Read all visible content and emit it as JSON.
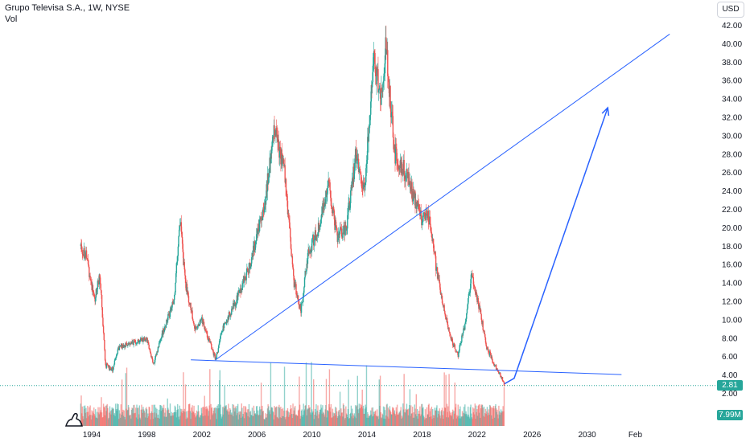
{
  "legend": {
    "title": "Grupo Televisa S.A., 1W, NYSE",
    "volume_label": "Vol"
  },
  "toolbar": {
    "currency": "USD"
  },
  "badges": {
    "last_price": "2.81",
    "volume": "7.99M"
  },
  "colors": {
    "up": "#26a69a",
    "down": "#ef5350",
    "trendline": "#2962ff",
    "axis_text": "#131722",
    "grid": "#f0f3fa"
  },
  "chart_data": {
    "type": "candlestick",
    "title": "Grupo Televisa S.A., 1W, NYSE",
    "ylim": [
      0,
      43
    ],
    "y_ticks": [
      2,
      4,
      6,
      8,
      10,
      12,
      14,
      16,
      18,
      20,
      22,
      24,
      26,
      28,
      30,
      32,
      34,
      36,
      38,
      40,
      42
    ],
    "y_tick_labels": [
      "2.00",
      "4.00",
      "6.00",
      "8.00",
      "10.00",
      "12.00",
      "14.00",
      "16.00",
      "18.00",
      "20.00",
      "22.00",
      "24.00",
      "26.00",
      "28.00",
      "30.00",
      "32.00",
      "34.00",
      "36.00",
      "38.00",
      "40.00",
      "42.00"
    ],
    "x_ticks": [
      1994,
      1998,
      2002,
      2006,
      2010,
      2014,
      2018,
      2022,
      2026,
      2030,
      2033.5
    ],
    "x_tick_labels": [
      "1994",
      "1998",
      "2002",
      "2006",
      "2010",
      "2014",
      "2018",
      "2022",
      "2026",
      "2030",
      "Feb"
    ],
    "grid": false,
    "last_price": 2.81,
    "last_volume": "7.99M",
    "price_path": [
      [
        1993.2,
        18.0
      ],
      [
        1993.6,
        17.0
      ],
      [
        1994.2,
        12.0
      ],
      [
        1994.6,
        15.0
      ],
      [
        1995.0,
        5.0
      ],
      [
        1995.5,
        4.5
      ],
      [
        1996.0,
        7.0
      ],
      [
        1997.0,
        7.5
      ],
      [
        1998.0,
        8.0
      ],
      [
        1998.5,
        5.0
      ],
      [
        1999.0,
        8.0
      ],
      [
        2000.0,
        12.0
      ],
      [
        2000.4,
        21.0
      ],
      [
        2000.8,
        14.0
      ],
      [
        2001.5,
        9.0
      ],
      [
        2002.0,
        10.0
      ],
      [
        2003.0,
        5.6
      ],
      [
        2003.5,
        9.0
      ],
      [
        2004.5,
        12.0
      ],
      [
        2005.5,
        16.0
      ],
      [
        2006.5,
        22.0
      ],
      [
        2007.3,
        31.0
      ],
      [
        2008.0,
        26.0
      ],
      [
        2008.7,
        14.0
      ],
      [
        2009.2,
        11.0
      ],
      [
        2009.7,
        17.0
      ],
      [
        2010.5,
        20.0
      ],
      [
        2011.2,
        25.0
      ],
      [
        2011.8,
        19.0
      ],
      [
        2012.5,
        20.0
      ],
      [
        2013.2,
        28.0
      ],
      [
        2013.8,
        24.0
      ],
      [
        2014.5,
        38.0
      ],
      [
        2015.0,
        34.0
      ],
      [
        2015.4,
        40.0
      ],
      [
        2016.0,
        28.0
      ],
      [
        2016.8,
        26.0
      ],
      [
        2017.5,
        23.0
      ],
      [
        2017.9,
        21.0
      ],
      [
        2018.5,
        21.0
      ],
      [
        2019.0,
        16.0
      ],
      [
        2019.6,
        11.0
      ],
      [
        2020.1,
        8.0
      ],
      [
        2020.6,
        6.0
      ],
      [
        2021.2,
        10.0
      ],
      [
        2021.6,
        15.0
      ],
      [
        2022.2,
        11.0
      ],
      [
        2022.7,
        7.0
      ],
      [
        2023.3,
        5.0
      ],
      [
        2023.7,
        4.0
      ],
      [
        2024.0,
        2.81
      ]
    ],
    "drawings": {
      "neckline": [
        [
          2001.2,
          5.6
        ],
        [
          2032.5,
          4.0
        ]
      ],
      "rising_trendline": [
        [
          2003.0,
          5.6
        ],
        [
          2036.0,
          41.0
        ]
      ],
      "projection_arrow": [
        [
          2024.0,
          3.0
        ],
        [
          2024.7,
          3.6
        ],
        [
          2031.5,
          33.0
        ]
      ]
    }
  }
}
